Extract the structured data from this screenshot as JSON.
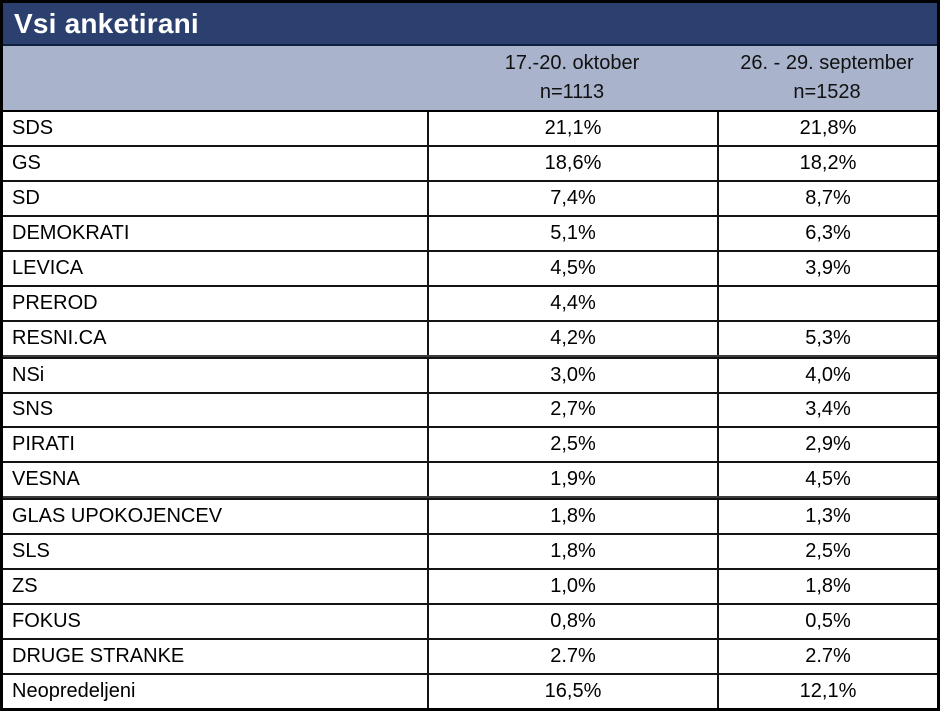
{
  "header": {
    "title": "Vsi anketirani"
  },
  "subheader": {
    "october": {
      "period": "17.-20. oktober",
      "n": "n=1113"
    },
    "september": {
      "period": "26. - 29. september",
      "n": "n=1528"
    }
  },
  "table": {
    "rows": [
      {
        "label": "SDS",
        "oct": "21,1%",
        "sep": "21,8%"
      },
      {
        "label": "GS",
        "oct": "18,6%",
        "sep": "18,2%"
      },
      {
        "label": "SD",
        "oct": "7,4%",
        "sep": "8,7%"
      },
      {
        "label": "DEMOKRATI",
        "oct": "5,1%",
        "sep": "6,3%"
      },
      {
        "label": "LEVICA",
        "oct": "4,5%",
        "sep": "3,9%"
      },
      {
        "label": "PREROD",
        "oct": "4,4%",
        "sep": ""
      },
      {
        "label": "RESNI.CA",
        "oct": "4,2%",
        "sep": "5,3%"
      },
      {
        "label": "NSi",
        "oct": "3,0%",
        "sep": "4,0%"
      },
      {
        "label": "SNS",
        "oct": "2,7%",
        "sep": "3,4%"
      },
      {
        "label": "PIRATI",
        "oct": "2,5%",
        "sep": "2,9%"
      },
      {
        "label": "VESNA",
        "oct": "1,9%",
        "sep": "4,5%"
      },
      {
        "label": "GLAS UPOKOJENCEV",
        "oct": "1,8%",
        "sep": "1,3%"
      },
      {
        "label": "SLS",
        "oct": "1,8%",
        "sep": "2,5%"
      },
      {
        "label": "ZS",
        "oct": "1,0%",
        "sep": "1,8%"
      },
      {
        "label": "FOKUS",
        "oct": "0,8%",
        "sep": "0,5%"
      },
      {
        "label": "DRUGE STRANKE",
        "oct": "2.7%",
        "sep": "2.7%"
      },
      {
        "label": "Neopredeljeni",
        "oct": "16,5%",
        "sep": "12,1%"
      }
    ]
  },
  "colors": {
    "title_bg": "#2b406f",
    "title_text": "#ffffff",
    "subheader_bg": "#a9b3cc",
    "border": "#000000",
    "cell_bg": "#ffffff",
    "cell_text": "#000000"
  },
  "chart_data": {
    "type": "table",
    "title": "Vsi anketirani",
    "columns": [
      "",
      "17.-20. oktober n=1113",
      "26. - 29. september n=1528"
    ],
    "rows": [
      [
        "SDS",
        "21,1%",
        "21,8%"
      ],
      [
        "GS",
        "18,6%",
        "18,2%"
      ],
      [
        "SD",
        "7,4%",
        "8,7%"
      ],
      [
        "DEMOKRATI",
        "5,1%",
        "6,3%"
      ],
      [
        "LEVICA",
        "4,5%",
        "3,9%"
      ],
      [
        "PREROD",
        "4,4%",
        ""
      ],
      [
        "RESNI.CA",
        "4,2%",
        "5,3%"
      ],
      [
        "NSi",
        "3,0%",
        "4,0%"
      ],
      [
        "SNS",
        "2,7%",
        "3,4%"
      ],
      [
        "PIRATI",
        "2,5%",
        "2,9%"
      ],
      [
        "VESNA",
        "1,9%",
        "4,5%"
      ],
      [
        "GLAS UPOKOJENCEV",
        "1,8%",
        "1,3%"
      ],
      [
        "SLS",
        "1,8%",
        "2,5%"
      ],
      [
        "ZS",
        "1,0%",
        "1,8%"
      ],
      [
        "FOKUS",
        "0,8%",
        "0,5%"
      ],
      [
        "DRUGE STRANKE",
        "2.7%",
        "2.7%"
      ],
      [
        "Neopredeljeni",
        "16,5%",
        "12,1%"
      ]
    ]
  }
}
